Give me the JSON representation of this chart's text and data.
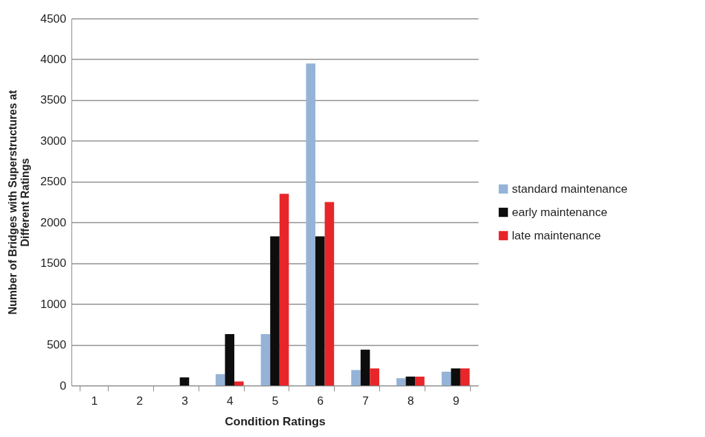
{
  "chart_data": {
    "type": "bar",
    "xlabel": "Condition Ratings",
    "ylabel": "Number of Bridges with Superstructures at\nDifferent Ratings",
    "categories": [
      "1",
      "2",
      "3",
      "4",
      "5",
      "6",
      "7",
      "8",
      "9"
    ],
    "series": [
      {
        "name": "standard maintenance",
        "color": "#95b3d7",
        "values": [
          0,
          0,
          0,
          140,
          630,
          3950,
          190,
          90,
          170
        ]
      },
      {
        "name": "early maintenance",
        "color": "#0d0d0d",
        "values": [
          0,
          0,
          100,
          630,
          1830,
          1830,
          440,
          110,
          210
        ]
      },
      {
        "name": "late maintenance",
        "color": "#e8262a",
        "values": [
          0,
          0,
          0,
          50,
          2350,
          2250,
          210,
          110,
          210
        ]
      }
    ],
    "ylim": [
      0,
      4500
    ],
    "yticks": [
      0,
      500,
      1000,
      1500,
      2000,
      2500,
      3000,
      3500,
      4000,
      4500
    ],
    "grid": "y",
    "legend": "right"
  }
}
